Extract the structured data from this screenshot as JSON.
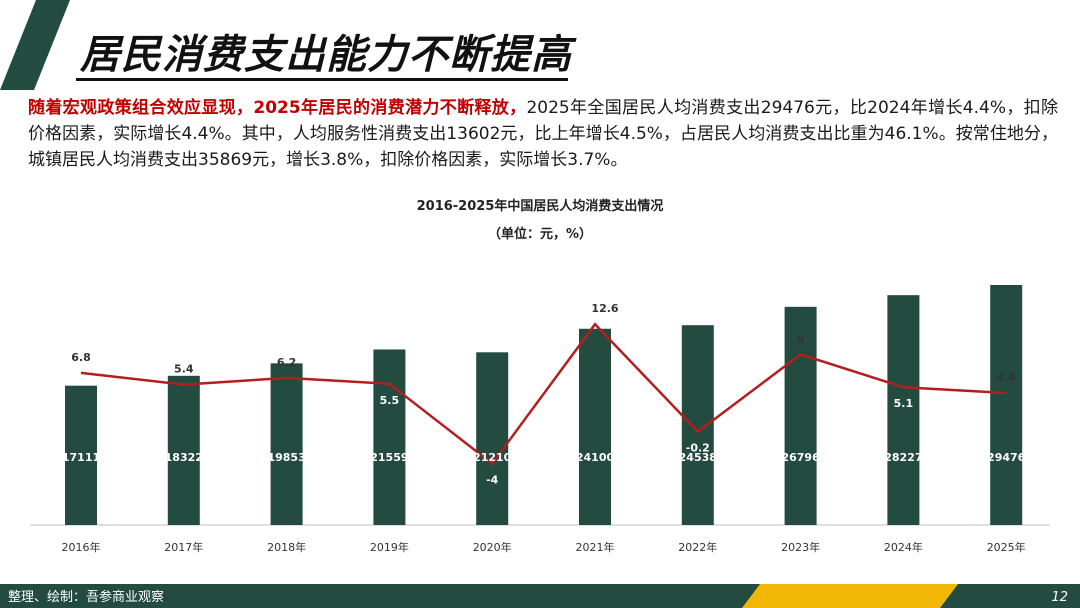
{
  "slide": {
    "title": "居民消费支出能力不断提高",
    "intro_highlight": "随着宏观政策组合效应显现，2025年居民的消费潜力不断释放，",
    "intro_text": "2025年全国居民人均消费支出29476元，比2024年增长4.4%，扣除价格因素，实际增长4.4%。其中，人均服务性消费支出13602元，比上年增长4.5%，占居民人均消费支出比重为46.1%。按常住地分，城镇居民人均消费支出35869元，增长3.8%，扣除价格因素，实际增长3.7%。",
    "footer_source": "整理、绘制：吾参商业观察",
    "page_number": "12",
    "colors": {
      "dark_green": "#234B40",
      "yellow": "#F2B705",
      "red_line": "#B41E1E",
      "highlight_red": "#C00000"
    }
  },
  "chart_data": {
    "type": "bar",
    "title": "2016-2025年中国居民人均消费支出情况",
    "subtitle": "（单位：元，%）",
    "categories": [
      "2016年",
      "2017年",
      "2018年",
      "2019年",
      "2020年",
      "2021年",
      "2022年",
      "2023年",
      "2024年",
      "2025年"
    ],
    "series": [
      {
        "type": "bar",
        "values": [
          17111,
          18322,
          19853,
          21559,
          21210,
          24100,
          24538,
          26796,
          28227,
          29476
        ],
        "color": "#234B40"
      },
      {
        "type": "line",
        "values": [
          6.8,
          5.4,
          6.2,
          5.5,
          -4,
          12.6,
          -0.2,
          9,
          5.1,
          4.4
        ],
        "color": "#B41E1E"
      }
    ],
    "grid": false,
    "legend": "none"
  }
}
